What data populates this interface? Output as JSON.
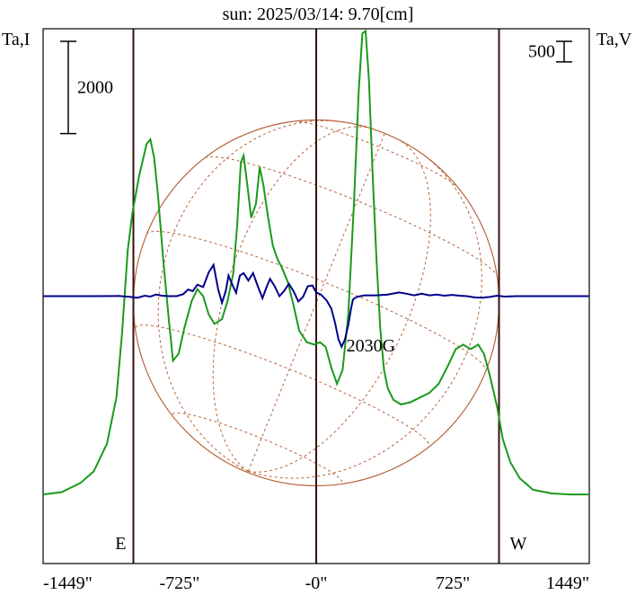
{
  "chart_data": {
    "type": "line",
    "title": "sun: 2025/03/14: 9.70[cm]",
    "left_axis_label": "Ta,I",
    "right_axis_label": "Ta,V",
    "x_ticks": [
      {
        "value": -1449,
        "label": "-1449\""
      },
      {
        "value": -725,
        "label": "-725\""
      },
      {
        "value": 0,
        "label": "-0\""
      },
      {
        "value": 725,
        "label": "725\""
      },
      {
        "value": 1449,
        "label": "1449\""
      }
    ],
    "xlim": [
      -1449,
      1449
    ],
    "scale_bars": {
      "left": {
        "label": "2000",
        "value": 2000
      },
      "right": {
        "label": "500",
        "value": 500
      }
    },
    "limb_markers": [
      {
        "label": "E",
        "x": -970
      },
      {
        "label": "W",
        "x": 970
      }
    ],
    "center_line_x": 0,
    "annotation": {
      "label": "2030G",
      "x": 290,
      "y_stokes_i": 4600
    },
    "colors": {
      "stokes_i": "#1a9a1a",
      "stokes_v": "#00008b",
      "disk": "#b8643c",
      "vertical_lines": "#3a1010",
      "title": "#000080"
    },
    "series": [
      {
        "id": "stokes_i",
        "ylim": [
          0,
          11600
        ],
        "points": [
          [
            -1449,
            1500
          ],
          [
            -1350,
            1550
          ],
          [
            -1250,
            1750
          ],
          [
            -1180,
            2000
          ],
          [
            -1110,
            2600
          ],
          [
            -1060,
            3600
          ],
          [
            -1030,
            5000
          ],
          [
            -1000,
            6800
          ],
          [
            -975,
            7600
          ],
          [
            -940,
            8400
          ],
          [
            -900,
            9100
          ],
          [
            -880,
            9200
          ],
          [
            -860,
            8800
          ],
          [
            -840,
            8000
          ],
          [
            -810,
            6500
          ],
          [
            -780,
            5200
          ],
          [
            -760,
            4400
          ],
          [
            -730,
            4550
          ],
          [
            -700,
            5100
          ],
          [
            -660,
            5700
          ],
          [
            -630,
            5950
          ],
          [
            -600,
            5800
          ],
          [
            -570,
            5400
          ],
          [
            -540,
            5200
          ],
          [
            -500,
            5300
          ],
          [
            -470,
            5700
          ],
          [
            -440,
            6300
          ],
          [
            -420,
            7300
          ],
          [
            -400,
            8700
          ],
          [
            -385,
            8850
          ],
          [
            -365,
            8200
          ],
          [
            -345,
            7500
          ],
          [
            -320,
            7800
          ],
          [
            -300,
            8600
          ],
          [
            -280,
            8200
          ],
          [
            -255,
            7500
          ],
          [
            -230,
            6900
          ],
          [
            -205,
            6600
          ],
          [
            -180,
            6400
          ],
          [
            -150,
            6100
          ],
          [
            -120,
            5600
          ],
          [
            -90,
            5050
          ],
          [
            -50,
            4800
          ],
          [
            -10,
            4750
          ],
          [
            20,
            4800
          ],
          [
            50,
            4700
          ],
          [
            80,
            4250
          ],
          [
            110,
            3900
          ],
          [
            140,
            4200
          ],
          [
            170,
            5400
          ],
          [
            200,
            7800
          ],
          [
            225,
            10200
          ],
          [
            245,
            11500
          ],
          [
            262,
            11550
          ],
          [
            280,
            10500
          ],
          [
            300,
            8400
          ],
          [
            320,
            6600
          ],
          [
            340,
            5100
          ],
          [
            360,
            4200
          ],
          [
            380,
            3800
          ],
          [
            410,
            3550
          ],
          [
            450,
            3450
          ],
          [
            500,
            3500
          ],
          [
            550,
            3600
          ],
          [
            600,
            3700
          ],
          [
            650,
            3900
          ],
          [
            700,
            4300
          ],
          [
            740,
            4650
          ],
          [
            780,
            4750
          ],
          [
            820,
            4650
          ],
          [
            860,
            4750
          ],
          [
            890,
            4550
          ],
          [
            920,
            4100
          ],
          [
            960,
            3400
          ],
          [
            990,
            2700
          ],
          [
            1030,
            2200
          ],
          [
            1080,
            1850
          ],
          [
            1150,
            1600
          ],
          [
            1250,
            1520
          ],
          [
            1350,
            1500
          ],
          [
            1449,
            1500
          ]
        ]
      },
      {
        "id": "stokes_v",
        "ylim": [
          -6500,
          6500
        ],
        "zero": 0,
        "points": [
          [
            -1449,
            0
          ],
          [
            -1200,
            0
          ],
          [
            -1050,
            5
          ],
          [
            -990,
            -15
          ],
          [
            -950,
            -40
          ],
          [
            -910,
            10
          ],
          [
            -880,
            -10
          ],
          [
            -850,
            40
          ],
          [
            -820,
            10
          ],
          [
            -780,
            0
          ],
          [
            -740,
            0
          ],
          [
            -705,
            50
          ],
          [
            -680,
            160
          ],
          [
            -655,
            120
          ],
          [
            -630,
            280
          ],
          [
            -600,
            220
          ],
          [
            -570,
            580
          ],
          [
            -545,
            760
          ],
          [
            -520,
            160
          ],
          [
            -500,
            -160
          ],
          [
            -480,
            120
          ],
          [
            -465,
            500
          ],
          [
            -445,
            280
          ],
          [
            -425,
            80
          ],
          [
            -405,
            500
          ],
          [
            -385,
            560
          ],
          [
            -360,
            380
          ],
          [
            -335,
            560
          ],
          [
            -310,
            240
          ],
          [
            -285,
            -50
          ],
          [
            -265,
            200
          ],
          [
            -245,
            420
          ],
          [
            -220,
            240
          ],
          [
            -195,
            0
          ],
          [
            -170,
            130
          ],
          [
            -145,
            300
          ],
          [
            -120,
            120
          ],
          [
            -95,
            -130
          ],
          [
            -70,
            -20
          ],
          [
            -45,
            240
          ],
          [
            -20,
            260
          ],
          [
            0,
            90
          ],
          [
            25,
            40
          ],
          [
            55,
            -100
          ],
          [
            80,
            -300
          ],
          [
            100,
            -650
          ],
          [
            118,
            -1050
          ],
          [
            135,
            -1230
          ],
          [
            152,
            -1060
          ],
          [
            170,
            -700
          ],
          [
            185,
            -300
          ],
          [
            195,
            -80
          ],
          [
            215,
            -20
          ],
          [
            255,
            20
          ],
          [
            320,
            20
          ],
          [
            380,
            40
          ],
          [
            440,
            90
          ],
          [
            480,
            60
          ],
          [
            520,
            20
          ],
          [
            560,
            60
          ],
          [
            600,
            20
          ],
          [
            640,
            40
          ],
          [
            680,
            10
          ],
          [
            720,
            30
          ],
          [
            760,
            10
          ],
          [
            800,
            0
          ],
          [
            840,
            -30
          ],
          [
            880,
            -40
          ],
          [
            920,
            -20
          ],
          [
            960,
            10
          ],
          [
            1000,
            -10
          ],
          [
            1060,
            0
          ],
          [
            1200,
            0
          ],
          [
            1449,
            0
          ]
        ]
      }
    ]
  }
}
